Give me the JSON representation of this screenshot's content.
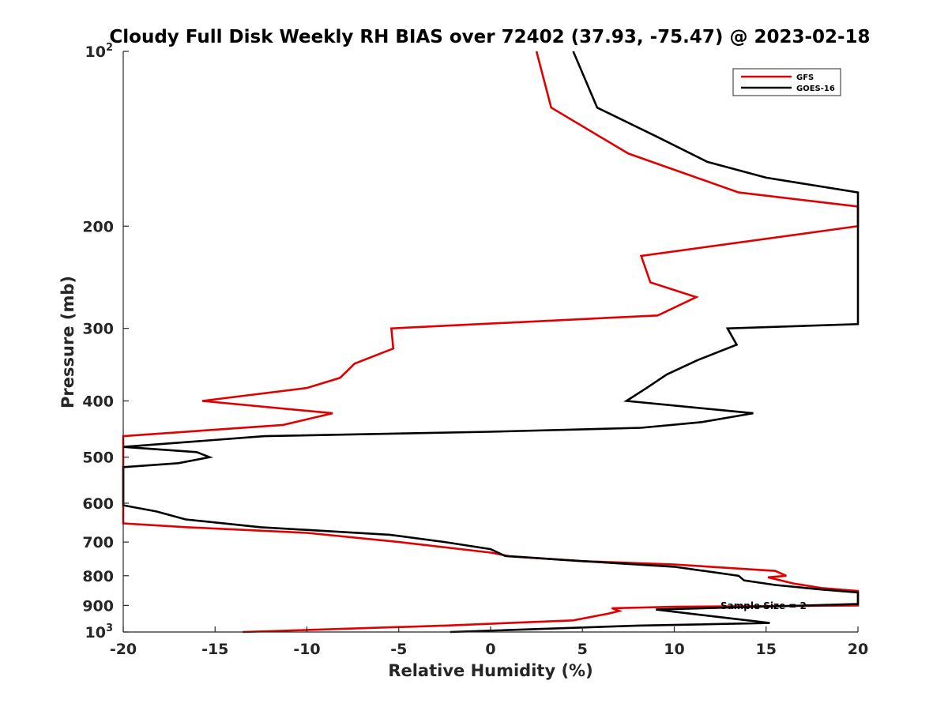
{
  "chart_data": {
    "type": "line",
    "title": "Cloudy Full Disk Weekly RH BIAS over 72402 (37.93, -75.47) @ 2023-02-18",
    "xlabel": "Relative Humidity (%)",
    "ylabel": "Pressure (mb)",
    "xlim": [
      -20,
      20
    ],
    "ylim": [
      100,
      1000
    ],
    "y_scale": "log",
    "y_reversed": true,
    "x_ticks": [
      "-20",
      "-15",
      "-10",
      "-5",
      "0",
      "5",
      "10",
      "15",
      "20"
    ],
    "y_ticks": [
      {
        "value": 100,
        "label": "10",
        "sup": "2"
      },
      {
        "value": 200,
        "label": "200"
      },
      {
        "value": 300,
        "label": "300"
      },
      {
        "value": 400,
        "label": "400"
      },
      {
        "value": 500,
        "label": "500"
      },
      {
        "value": 600,
        "label": "600"
      },
      {
        "value": 700,
        "label": "700"
      },
      {
        "value": 800,
        "label": "800"
      },
      {
        "value": 900,
        "label": "900"
      },
      {
        "value": 1000,
        "label": "10",
        "sup": "3"
      }
    ],
    "grid": false,
    "legend_position": "top-right",
    "annotation": "Sample Size = 2",
    "series": [
      {
        "name": "GFS",
        "color": "#e00000",
        "points": [
          [
            2.5,
            100
          ],
          [
            3.3,
            125
          ],
          [
            7.5,
            150
          ],
          [
            13.5,
            175
          ],
          [
            20,
            185
          ],
          [
            20,
            200
          ],
          [
            8.2,
            225
          ],
          [
            8.7,
            250
          ],
          [
            11.2,
            265
          ],
          [
            9.1,
            285
          ],
          [
            -5.4,
            300
          ],
          [
            -5.3,
            325
          ],
          [
            -7.4,
            345
          ],
          [
            -8.2,
            365
          ],
          [
            -10,
            380
          ],
          [
            -15.7,
            400
          ],
          [
            -8.6,
            420
          ],
          [
            -11.3,
            440
          ],
          [
            -20,
            460
          ],
          [
            -20,
            650
          ],
          [
            -16.5,
            660
          ],
          [
            -10,
            675
          ],
          [
            -5,
            700
          ],
          [
            0,
            730
          ],
          [
            1,
            740
          ],
          [
            5,
            755
          ],
          [
            10,
            765
          ],
          [
            15.5,
            785
          ],
          [
            16.1,
            800
          ],
          [
            15.1,
            805
          ],
          [
            16.5,
            825
          ],
          [
            18,
            840
          ],
          [
            20,
            850
          ],
          [
            20,
            900
          ],
          [
            10,
            905
          ],
          [
            6.6,
            910
          ],
          [
            7,
            920
          ],
          [
            6.4,
            930
          ],
          [
            4.5,
            955
          ],
          [
            -2.5,
            975
          ],
          [
            -13.5,
            1000
          ]
        ]
      },
      {
        "name": "GOES-16",
        "color": "#000000",
        "points": [
          [
            4.5,
            100
          ],
          [
            5.8,
            125
          ],
          [
            9,
            140
          ],
          [
            11.8,
            155
          ],
          [
            15,
            165
          ],
          [
            20,
            175
          ],
          [
            20,
            295
          ],
          [
            12.9,
            300
          ],
          [
            13.4,
            320
          ],
          [
            11.3,
            340
          ],
          [
            9.6,
            360
          ],
          [
            8.5,
            380
          ],
          [
            7.4,
            400
          ],
          [
            14.3,
            420
          ],
          [
            11.5,
            435
          ],
          [
            8.2,
            445
          ],
          [
            0,
            452
          ],
          [
            -12.3,
            460
          ],
          [
            -20,
            480
          ],
          [
            -16,
            490
          ],
          [
            -15.3,
            500
          ],
          [
            -17,
            512
          ],
          [
            -20,
            520
          ],
          [
            -20,
            605
          ],
          [
            -18.2,
            620
          ],
          [
            -16.6,
            640
          ],
          [
            -12.5,
            660
          ],
          [
            -5.5,
            680
          ],
          [
            -2.5,
            700
          ],
          [
            0,
            720
          ],
          [
            0.8,
            740
          ],
          [
            5,
            755
          ],
          [
            10,
            772
          ],
          [
            13.5,
            800
          ],
          [
            13.8,
            815
          ],
          [
            15.5,
            830
          ],
          [
            18,
            845
          ],
          [
            20,
            855
          ],
          [
            20,
            895
          ],
          [
            9,
            915
          ],
          [
            15.2,
            965
          ],
          [
            8,
            975
          ],
          [
            -2.2,
            1000
          ]
        ]
      }
    ]
  }
}
